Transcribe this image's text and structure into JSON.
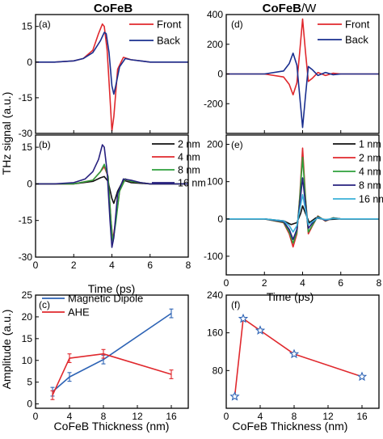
{
  "column_titles": {
    "left": "CoFeB",
    "right_a": "CoFeB",
    "right_b": "/W"
  },
  "shared_labels": {
    "ylabel_top": "THz signal (a.u.)",
    "xlabel_time": "Time (ps)",
    "ylabel_bottom": "Amplitude (a.u.)",
    "xlabel_thickness": "CoFeB Thickness (nm)"
  },
  "panels": {
    "a": {
      "label": "(a)"
    },
    "b": {
      "label": "(b)"
    },
    "c": {
      "label": "(c)"
    },
    "d": {
      "label": "(d)"
    },
    "e": {
      "label": "(e)"
    },
    "f": {
      "label": "(f)"
    }
  },
  "colors": {
    "red": "#e0282d",
    "navy": "#1a2f8f",
    "black": "#111111",
    "green": "#2ea03c",
    "indigo": "#27207e",
    "cyan": "#39b0d8",
    "blue": "#2d63b5"
  },
  "chart_data": [
    {
      "panel": "a",
      "type": "line",
      "xlim": [
        0,
        8
      ],
      "ylim": [
        -30,
        20
      ],
      "yticks": [
        15,
        0,
        -15,
        -30
      ],
      "xticks": [
        0,
        2,
        4,
        6,
        8
      ],
      "xtick_labels_shown": false,
      "legend": "top-right",
      "series": [
        {
          "name": "Front",
          "color": "red",
          "x": [
            0,
            1.0,
            2.0,
            2.5,
            3.0,
            3.3,
            3.5,
            3.6,
            3.75,
            3.9,
            4.0,
            4.1,
            4.3,
            4.6,
            5.0,
            5.5,
            6.0,
            7.0,
            8.0
          ],
          "y": [
            0,
            0,
            0.5,
            1.5,
            5,
            12,
            16,
            15,
            5,
            -15,
            -29,
            -23,
            -3,
            2,
            1,
            0.5,
            0,
            0,
            0
          ]
        },
        {
          "name": "Back",
          "color": "navy",
          "x": [
            0,
            1.0,
            2.0,
            2.5,
            3.0,
            3.4,
            3.6,
            3.7,
            3.85,
            4.0,
            4.1,
            4.2,
            4.4,
            4.7,
            5.0,
            5.5,
            6.0,
            7.0,
            8.0
          ],
          "y": [
            0,
            0,
            0.5,
            1.5,
            4,
            9,
            12.5,
            12,
            4,
            -10,
            -13.5,
            -10,
            -2,
            1.5,
            1,
            0.5,
            0,
            0,
            0
          ]
        }
      ]
    },
    {
      "panel": "b",
      "type": "line",
      "xlim": [
        0,
        8
      ],
      "ylim": [
        -30,
        20
      ],
      "yticks": [
        15,
        0,
        -15,
        -30
      ],
      "xticks": [
        0,
        2,
        4,
        6,
        8
      ],
      "xtick_labels": [
        "0",
        "2",
        "4",
        "6",
        "8"
      ],
      "legend": "top-right",
      "series": [
        {
          "name": "2 nm",
          "color": "black",
          "x": [
            0,
            2.0,
            3.0,
            3.4,
            3.6,
            3.8,
            4.0,
            4.1,
            4.3,
            4.6,
            5.0,
            6.0,
            8.0
          ],
          "y": [
            0,
            0,
            1,
            2.5,
            3,
            1,
            -6,
            -8,
            -3,
            1.5,
            0.5,
            0,
            0
          ]
        },
        {
          "name": "4 nm",
          "color": "red",
          "x": [
            0,
            2.0,
            3.0,
            3.4,
            3.6,
            3.8,
            3.95,
            4.05,
            4.2,
            4.4,
            4.7,
            5.0,
            6.0,
            8.0
          ],
          "y": [
            0,
            0,
            1.5,
            5,
            7,
            3,
            -15,
            -23,
            -15,
            -3,
            2,
            1,
            0,
            0
          ]
        },
        {
          "name": "8 nm",
          "color": "green",
          "x": [
            0,
            2.0,
            3.0,
            3.4,
            3.6,
            3.8,
            3.95,
            4.05,
            4.2,
            4.4,
            4.7,
            5.0,
            6.0,
            8.0
          ],
          "y": [
            0,
            0,
            1.5,
            5,
            8,
            3,
            -15,
            -24,
            -16,
            -3,
            2,
            1,
            0,
            0
          ]
        },
        {
          "name": "16 nm",
          "color": "indigo",
          "x": [
            0,
            1.0,
            2.0,
            2.6,
            3.0,
            3.3,
            3.5,
            3.6,
            3.75,
            3.9,
            4.0,
            4.1,
            4.3,
            4.6,
            5.0,
            5.5,
            6.0,
            7.0,
            8.0
          ],
          "y": [
            0,
            0,
            0.5,
            2,
            5,
            10,
            16,
            15,
            5,
            -15,
            -26,
            -22,
            -4,
            2,
            1.5,
            0.5,
            0,
            0,
            0
          ]
        }
      ]
    },
    {
      "panel": "c",
      "type": "line",
      "xlim": [
        0,
        18
      ],
      "ylim": [
        -1,
        25
      ],
      "yticks": [
        0,
        5,
        10,
        15,
        20,
        25
      ],
      "xticks": [
        0,
        4,
        8,
        12,
        16
      ],
      "xtick_labels": [
        "0",
        "4",
        "8",
        "12",
        "16"
      ],
      "legend": "top-left",
      "series": [
        {
          "name": "Magnetic Dipole",
          "color": "blue",
          "x": [
            2,
            4,
            8,
            16
          ],
          "y": [
            2.8,
            6.2,
            10.2,
            20.8
          ],
          "yerr": [
            1.0,
            1.0,
            1.0,
            1.0
          ]
        },
        {
          "name": "AHE",
          "color": "red",
          "x": [
            2,
            4,
            8,
            16
          ],
          "y": [
            2.0,
            10.5,
            11.5,
            6.8
          ],
          "yerr": [
            1.0,
            1.0,
            1.0,
            1.0
          ]
        }
      ]
    },
    {
      "panel": "d",
      "type": "line",
      "xlim": [
        0,
        8
      ],
      "ylim": [
        -400,
        400
      ],
      "yticks": [
        -200,
        0,
        200,
        400
      ],
      "xticks": [
        0,
        2,
        4,
        6,
        8
      ],
      "xtick_labels_shown": false,
      "legend": "top-right",
      "series": [
        {
          "name": "Front",
          "color": "red",
          "x": [
            0,
            2.0,
            3.0,
            3.3,
            3.5,
            3.7,
            3.85,
            4.0,
            4.15,
            4.3,
            4.5,
            4.8,
            5.2,
            5.6,
            6.0,
            8.0
          ],
          "y": [
            0,
            0,
            -20,
            -70,
            -140,
            -60,
            150,
            370,
            150,
            -50,
            -30,
            10,
            -10,
            5,
            0,
            0
          ]
        },
        {
          "name": "Back",
          "color": "navy",
          "x": [
            0,
            2.0,
            3.0,
            3.3,
            3.5,
            3.7,
            3.85,
            4.0,
            4.15,
            4.3,
            4.5,
            4.8,
            5.2,
            5.6,
            6.0,
            8.0
          ],
          "y": [
            0,
            0,
            20,
            70,
            140,
            60,
            -150,
            -360,
            -150,
            50,
            30,
            -10,
            10,
            -5,
            0,
            0
          ]
        }
      ]
    },
    {
      "panel": "e",
      "type": "line",
      "xlim": [
        0,
        8
      ],
      "ylim": [
        -150,
        225
      ],
      "yticks": [
        200,
        100,
        0,
        -100
      ],
      "xticks": [
        0,
        2,
        4,
        6,
        8
      ],
      "xtick_labels": [
        "0",
        "2",
        "4",
        "6",
        "8"
      ],
      "legend": "top-right",
      "series": [
        {
          "name": "1 nm",
          "color": "black",
          "x": [
            0,
            2.0,
            3.0,
            3.4,
            3.7,
            3.9,
            4.0,
            4.15,
            4.35,
            4.7,
            5.2,
            6.0,
            8.0
          ],
          "y": [
            0,
            0,
            -5,
            -15,
            -10,
            15,
            35,
            15,
            -10,
            3,
            -2,
            0,
            0
          ]
        },
        {
          "name": "2 nm",
          "color": "red",
          "x": [
            0,
            2.0,
            3.0,
            3.3,
            3.5,
            3.7,
            3.85,
            4.0,
            4.15,
            4.3,
            4.5,
            4.8,
            5.2,
            5.6,
            6.0,
            8.0
          ],
          "y": [
            0,
            0,
            -10,
            -40,
            -75,
            -40,
            60,
            190,
            60,
            -40,
            -20,
            8,
            -6,
            3,
            0,
            0
          ]
        },
        {
          "name": "4 nm",
          "color": "green",
          "x": [
            0,
            2.0,
            3.0,
            3.3,
            3.5,
            3.7,
            3.85,
            4.0,
            4.15,
            4.3,
            4.5,
            4.8,
            5.2,
            5.6,
            6.0,
            8.0
          ],
          "y": [
            0,
            0,
            -9,
            -35,
            -65,
            -35,
            55,
            165,
            55,
            -35,
            -18,
            7,
            -5,
            3,
            0,
            0
          ]
        },
        {
          "name": "8 nm",
          "color": "indigo",
          "x": [
            0,
            2.0,
            3.0,
            3.3,
            3.5,
            3.7,
            3.85,
            4.0,
            4.15,
            4.3,
            4.5,
            4.8,
            5.2,
            5.6,
            6.0,
            8.0
          ],
          "y": [
            0,
            0,
            -7,
            -28,
            -55,
            -28,
            40,
            110,
            40,
            -25,
            -12,
            5,
            -4,
            2,
            0,
            0
          ]
        },
        {
          "name": "16 nm",
          "color": "cyan",
          "x": [
            0,
            2.0,
            3.0,
            3.3,
            3.5,
            3.7,
            3.85,
            4.0,
            4.15,
            4.3,
            4.5,
            4.8,
            5.2,
            5.6,
            6.0,
            8.0
          ],
          "y": [
            0,
            0,
            -5,
            -18,
            -35,
            -18,
            25,
            65,
            25,
            -15,
            -8,
            3,
            -2,
            1,
            0,
            0
          ]
        }
      ]
    },
    {
      "panel": "f",
      "type": "line",
      "xlim": [
        0,
        18
      ],
      "ylim": [
        0,
        240
      ],
      "yticks": [
        80,
        160,
        240
      ],
      "xticks": [
        0,
        4,
        8,
        12,
        16
      ],
      "xtick_labels": [
        "0",
        "4",
        "8",
        "12",
        "16"
      ],
      "marker": "star",
      "series": [
        {
          "color": "red",
          "marker_color": "blue",
          "x": [
            1,
            2,
            4,
            8,
            16
          ],
          "y": [
            25,
            190,
            165,
            115,
            67
          ]
        }
      ]
    }
  ]
}
